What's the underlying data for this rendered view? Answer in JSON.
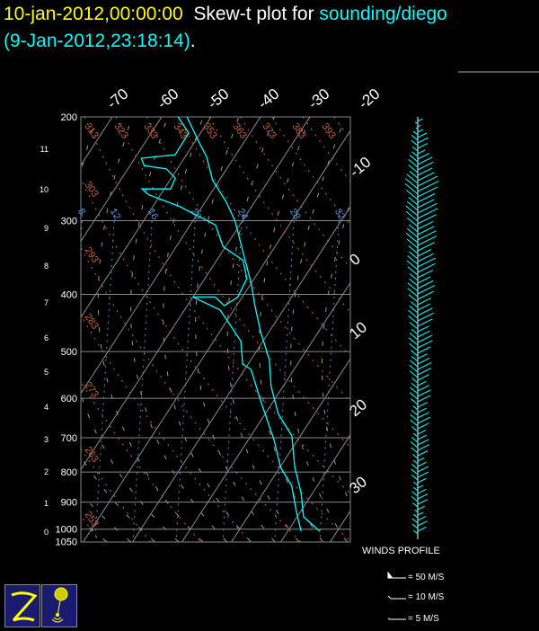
{
  "header": {
    "date": "10-jan-2012,00:00:00",
    "plot_label": "Skew-t plot for",
    "station": "sounding/diego",
    "obs_time": "(9-Jan-2012,23:18:14)",
    "period": "."
  },
  "colors": {
    "date": "#ffff00",
    "label": "#ffffff",
    "station": "#00ffff",
    "profile": "#00ffff",
    "dry_adiabat": "#c8643c",
    "mixing_ratio": "#4a8fd0",
    "isotherm": "#8c8c8c"
  },
  "chart_data": {
    "type": "line",
    "y_scale": "log-pressure",
    "ylabel": "",
    "ylim_hpa": [
      1050,
      200
    ],
    "pressure_ticks": [
      "200",
      "300",
      "400",
      "500",
      "600",
      "700",
      "800",
      "900",
      "1000",
      "1050"
    ],
    "height_ticks_km": [
      "0",
      "1",
      "2",
      "3",
      "4",
      "5",
      "6",
      "7",
      "8",
      "9",
      "10",
      "11"
    ],
    "isotherm_top_labels": [
      "-70",
      "-60",
      "-50",
      "-40",
      "-30",
      "-20"
    ],
    "isotherm_right_labels": [
      "-10",
      "0",
      "10",
      "20",
      "30"
    ],
    "dry_adiabat_labels_top": [
      "313",
      "323",
      "333",
      "343",
      "353",
      "363",
      "373",
      "383",
      "393"
    ],
    "dry_adiabat_labels_left": [
      "303",
      "293",
      "283",
      "273",
      "263",
      "253"
    ],
    "mixing_ratio_labels": [
      "8",
      "12",
      "16",
      "20",
      "24",
      "28",
      "32"
    ],
    "series": [
      {
        "id": "temperature",
        "points": [
          [
            200,
            -54.9
          ],
          [
            222,
            -48.8
          ],
          [
            234,
            -45.6
          ],
          [
            256,
            -41.4
          ],
          [
            279,
            -35.7
          ],
          [
            300,
            -31.5
          ],
          [
            338,
            -25.9
          ],
          [
            383,
            -20
          ],
          [
            418,
            -16.3
          ],
          [
            464,
            -11.6
          ],
          [
            516,
            -6.3
          ],
          [
            573,
            -2.4
          ],
          [
            637,
            2.6
          ],
          [
            695,
            8.3
          ],
          [
            785,
            13
          ],
          [
            867,
            17.6
          ],
          [
            953,
            21.3
          ],
          [
            1008,
            26.5
          ]
        ]
      },
      {
        "id": "dewpoint",
        "points": [
          [
            200,
            -56.7
          ],
          [
            213,
            -52.4
          ],
          [
            232,
            -52.3
          ],
          [
            235,
            -58.7
          ],
          [
            242,
            -57.1
          ],
          [
            245,
            -52.2
          ],
          [
            254,
            -49.2
          ],
          [
            265,
            -48.7
          ],
          [
            265,
            -54.5
          ],
          [
            271,
            -52.4
          ],
          [
            284,
            -44.5
          ],
          [
            305,
            -34.9
          ],
          [
            332,
            -30.5
          ],
          [
            350,
            -24.7
          ],
          [
            376,
            -21.5
          ],
          [
            404,
            -20.9
          ],
          [
            418,
            -22.5
          ],
          [
            404,
            -25.5
          ],
          [
            404,
            -30
          ],
          [
            425,
            -22.8
          ],
          [
            448,
            -19.2
          ],
          [
            480,
            -14.5
          ],
          [
            525,
            -11.1
          ],
          [
            536,
            -8.7
          ],
          [
            604,
            -2.8
          ],
          [
            658,
            1.6
          ],
          [
            707,
            5.3
          ],
          [
            785,
            10.1
          ],
          [
            844,
            14.8
          ],
          [
            937,
            19.3
          ],
          [
            1008,
            22.7
          ]
        ]
      }
    ]
  },
  "winds": {
    "title": "WINDS PROFILE",
    "legend": [
      "= 50 M/S",
      "= 10 M/S",
      "= 5 M/S"
    ]
  }
}
